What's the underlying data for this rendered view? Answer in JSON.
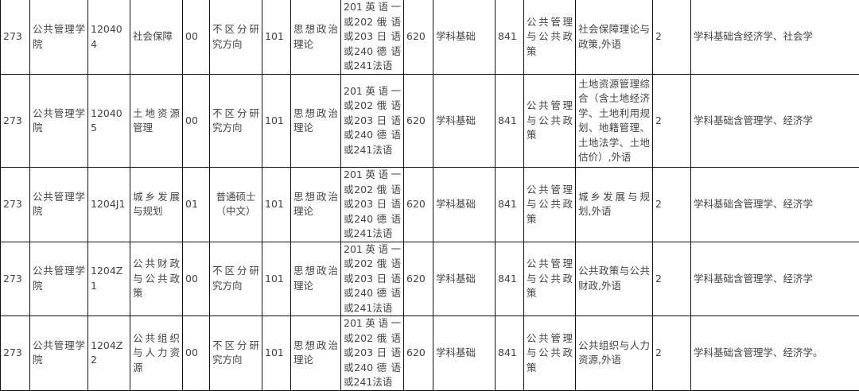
{
  "columns": [
    "unit_code",
    "unit_name",
    "major_code",
    "major_name",
    "direction_code",
    "direction_name",
    "politics_code",
    "politics_name",
    "foreign_language",
    "subject1_code",
    "subject1_name",
    "subject2_code",
    "subject2_name",
    "retest_subject",
    "study_years",
    "notes"
  ],
  "rows": [
    [
      "273",
      "公共管理学院",
      "120404",
      "社会保障",
      "00",
      "不区分研究方向",
      "101",
      "思想政治理论",
      "201英语一或202 俄 语 或203 日 语 或240 德 语 或241法语",
      "620",
      "学科基础",
      "841",
      "公共管理与公共政策",
      "社会保障理论与政策,外语",
      "2",
      "学科基础含经济学、社会学"
    ],
    [
      "273",
      "公共管理学院",
      "120405",
      "土地资源管理",
      "00",
      "不区分研究方向",
      "101",
      "思想政治理论",
      "201英语一或202 俄 语 或203 日 语 或240 德 语 或241法语",
      "620",
      "学科基础",
      "841",
      "公共管理与公共政策",
      "土地资源管理综合（含土地经济学、土地利用规划、地籍管理、土地法学、土地估价）,外语",
      "2",
      "学科基础含管理学、经济学"
    ],
    [
      "273",
      "公共管理学院",
      "1204J1",
      "城乡发展与规划",
      "01",
      "普通硕士（中文）",
      "101",
      "思想政治理论",
      "201英语一或202 俄 语 或203 日 语 或240 德 语 或241法语",
      "620",
      "学科基础",
      "841",
      "公共管理与公共政策",
      "城乡发展与规划,外语",
      "2",
      "学科基础含管理学、经济学"
    ],
    [
      "273",
      "公共管理学院",
      "1204Z1",
      "公共财政与公共政策",
      "00",
      "不区分研究方向",
      "101",
      "思想政治理论",
      "201英语一或202 俄 语 或203 日 语 或240 德 语 或241法语",
      "620",
      "学科基础",
      "841",
      "公共管理与公共政策",
      "公共政策与公共财政,外语",
      "2",
      "学科基础含管理学、经济学"
    ],
    [
      "273",
      "公共管理学院",
      "1204Z2",
      "公共组织与人力资源",
      "00",
      "不区分研究方向",
      "101",
      "思想政治理论",
      "201英语一或202 俄 语 或203 日 语 或240 德 语 或241法语",
      "620",
      "学科基础",
      "841",
      "公共管理与公共政策",
      "公共组织与人力资源,外语",
      "2",
      "学科基础含管理学、经济学。"
    ]
  ]
}
